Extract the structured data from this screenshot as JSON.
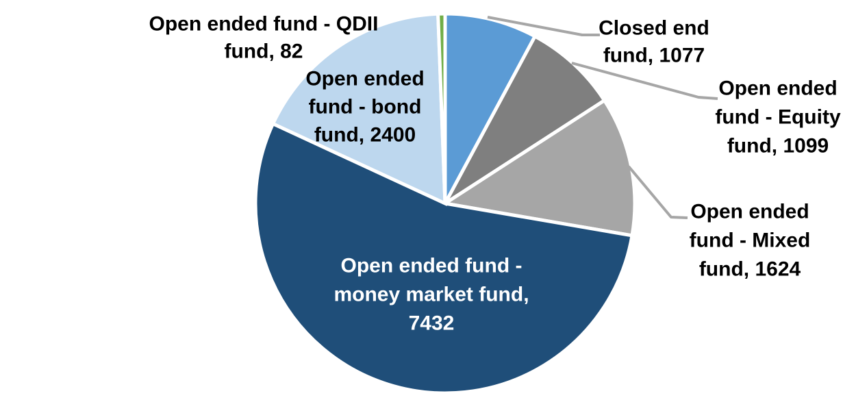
{
  "chart_data": {
    "type": "pie",
    "title": "",
    "legend_position": "none",
    "labels_style": "category name and value, wrapped, outside or inside slices",
    "leader_line_color": "#A6A6A6",
    "slice_gap_color": "#FFFFFF",
    "start_angle_deg": 0,
    "direction": "clockwise",
    "slices": [
      {
        "name": "closed-end-fund",
        "label": "Closed end fund",
        "value": 1077,
        "color": "#5B9BD5",
        "label_color": "#000000",
        "display_lines": [
          "Closed end",
          "fund, 1077"
        ],
        "has_leader": true
      },
      {
        "name": "equity-fund",
        "label": "Open ended fund - Equity fund",
        "value": 1099,
        "color": "#7F7F7F",
        "label_color": "#000000",
        "display_lines": [
          "Open ended",
          "fund - Equity",
          "fund, 1099"
        ],
        "has_leader": true
      },
      {
        "name": "mixed-fund",
        "label": "Open ended fund - Mixed fund",
        "value": 1624,
        "color": "#A6A6A6",
        "label_color": "#000000",
        "display_lines": [
          "Open ended",
          "fund - Mixed",
          "fund, 1624"
        ],
        "has_leader": true
      },
      {
        "name": "money-market-fund",
        "label": "Open ended fund - money market fund",
        "value": 7432,
        "color": "#1F4E79",
        "label_color": "#FFFFFF",
        "display_lines": [
          "Open ended fund -",
          "money market fund,",
          "7432"
        ],
        "has_leader": false
      },
      {
        "name": "bond-fund",
        "label": "Open ended fund - bond fund",
        "value": 2400,
        "color": "#BDD7EE",
        "label_color": "#000000",
        "display_lines": [
          "Open ended",
          "fund - bond",
          "fund, 2400"
        ],
        "has_leader": false
      },
      {
        "name": "qdii-fund",
        "label": "Open ended fund - QDII fund",
        "value": 82,
        "color": "#70AD47",
        "label_color": "#000000",
        "display_lines": [
          "Open ended fund - QDII",
          "fund, 82"
        ],
        "has_leader": false
      }
    ]
  }
}
